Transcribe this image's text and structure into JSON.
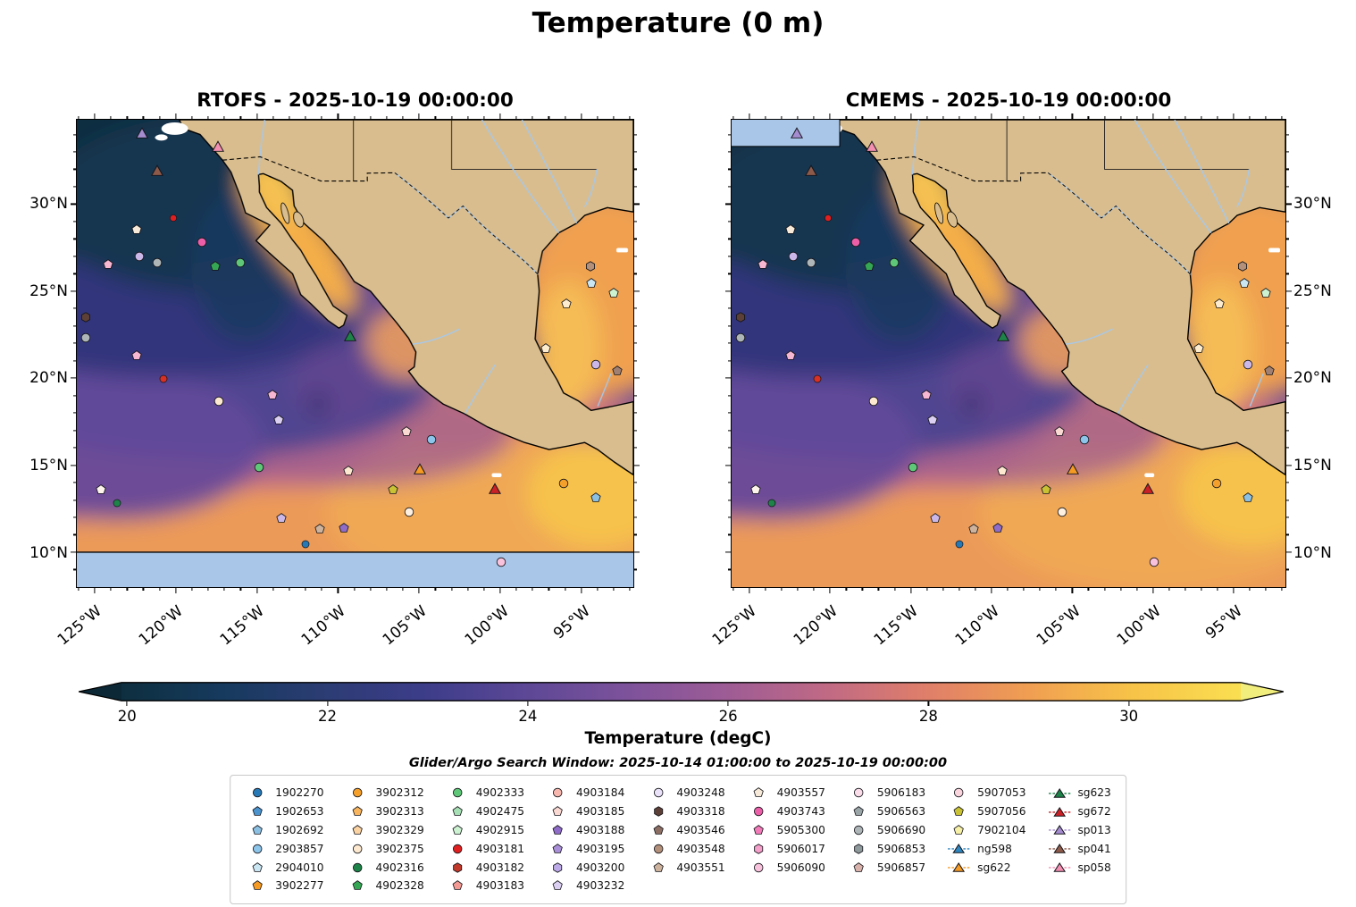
{
  "title": "Temperature (0 m)",
  "chart_data": {
    "type": "heatmap",
    "variable": "Temperature (degC)",
    "depth_label": "0 m",
    "subtitle": "Glider/Argo Search Window: 2025-10-14 01:00:00 to 2025-10-19 00:00:00",
    "panels": [
      {
        "id": "rtofs",
        "title": "RTOFS - 2025-10-19 00:00:00",
        "nodata_region": "south of 10N"
      },
      {
        "id": "cmems",
        "title": "CMEMS - 2025-10-19 00:00:00",
        "nodata_region": "northwest corner strip"
      }
    ],
    "x_axis": {
      "ticks": [
        {
          "label": "125°W",
          "pct": 3.21
        },
        {
          "label": "120°W",
          "pct": 17.78
        },
        {
          "label": "115°W",
          "pct": 32.36
        },
        {
          "label": "110°W",
          "pct": 46.93
        },
        {
          "label": "105°W",
          "pct": 61.51
        },
        {
          "label": "100°W",
          "pct": 76.08
        },
        {
          "label": "95°W",
          "pct": 90.66
        }
      ],
      "minor_pcts": [
        0.29,
        6.12,
        9.04,
        11.95,
        14.87,
        20.7,
        23.61,
        26.53,
        29.44,
        35.27,
        38.19,
        41.1,
        44.02,
        49.85,
        52.76,
        55.68,
        58.59,
        64.42,
        67.34,
        70.25,
        73.17,
        79.0,
        81.91,
        84.83,
        87.74,
        93.57,
        96.49,
        99.4
      ]
    },
    "y_axis": {
      "ticks": [
        {
          "label": "30°N",
          "pct": 18.06
        },
        {
          "label": "25°N",
          "pct": 36.68
        },
        {
          "label": "20°N",
          "pct": 55.29
        },
        {
          "label": "15°N",
          "pct": 73.91
        },
        {
          "label": "10°N",
          "pct": 92.53
        }
      ],
      "minor_pcts": [
        3.17,
        6.89,
        10.61,
        14.34,
        21.78,
        25.51,
        29.23,
        32.95,
        40.4,
        44.12,
        47.85,
        51.57,
        59.02,
        62.74,
        66.46,
        70.19,
        77.63,
        81.36,
        85.08,
        88.8,
        96.25
      ]
    },
    "colorbar": {
      "label": "Temperature (degC)",
      "range_degC": [
        19.9,
        31.1
      ],
      "extend": "both",
      "ticks": [
        {
          "label": "20",
          "pct": 0.5
        },
        {
          "label": "22",
          "pct": 18.4
        },
        {
          "label": "24",
          "pct": 36.3
        },
        {
          "label": "26",
          "pct": 54.2
        },
        {
          "label": "28",
          "pct": 72.1
        },
        {
          "label": "30",
          "pct": 90.0
        }
      ],
      "stops": [
        {
          "pct": 0,
          "color": "#0e2f3f"
        },
        {
          "pct": 9,
          "color": "#163a5e"
        },
        {
          "pct": 18.4,
          "color": "#2c3c74"
        },
        {
          "pct": 27.3,
          "color": "#3d3d8a"
        },
        {
          "pct": 36.3,
          "color": "#5d4896"
        },
        {
          "pct": 45.2,
          "color": "#7d529b"
        },
        {
          "pct": 54.2,
          "color": "#9e5c95"
        },
        {
          "pct": 63.2,
          "color": "#c16a84"
        },
        {
          "pct": 72.1,
          "color": "#e07f69"
        },
        {
          "pct": 81,
          "color": "#f09e52"
        },
        {
          "pct": 90,
          "color": "#f7c248"
        },
        {
          "pct": 100,
          "color": "#fadf51"
        }
      ],
      "under_color": "#0c2836",
      "over_color": "#f2ee7d"
    },
    "colors": {
      "land": "#d9bd8e",
      "nodata_ocean": "#a9c6e8",
      "coastline": "#000000",
      "river": "#a8c8e8"
    },
    "markers": [
      {
        "x": 11.7,
        "y": 2.9,
        "shape": "triangle",
        "color": "#a58cd0",
        "size": 14,
        "name": "sp013"
      },
      {
        "x": 25.3,
        "y": 5.7,
        "shape": "triangle",
        "color": "#f48fb1",
        "size": 14,
        "name": "sp058"
      },
      {
        "x": 14.4,
        "y": 10.9,
        "shape": "triangle",
        "color": "#8d5a4a",
        "size": 14,
        "name": "sp041"
      },
      {
        "x": 10.7,
        "y": 23.6,
        "shape": "pentagon",
        "color": "#f7ead8",
        "name": "argo"
      },
      {
        "x": 17.4,
        "y": 21.0,
        "shape": "circle",
        "color": "#e02020",
        "size": 9,
        "name": "argo"
      },
      {
        "x": 22.4,
        "y": 26.1,
        "shape": "circle",
        "color": "#ec5fa8",
        "name": "argo"
      },
      {
        "x": 11.2,
        "y": 29.3,
        "shape": "circle",
        "color": "#cbb8e8",
        "name": "argo"
      },
      {
        "x": 5.6,
        "y": 30.9,
        "shape": "pentagon",
        "color": "#f7b6d2",
        "name": "argo"
      },
      {
        "x": 14.4,
        "y": 30.5,
        "shape": "circle",
        "color": "#aeb6b8",
        "name": "argo"
      },
      {
        "x": 24.8,
        "y": 31.4,
        "shape": "pentagon",
        "color": "#35a653",
        "name": "argo"
      },
      {
        "x": 29.3,
        "y": 30.5,
        "shape": "circle",
        "color": "#5fc878",
        "name": "argo"
      },
      {
        "x": 92.3,
        "y": 31.4,
        "shape": "hexagon",
        "color": "#b3907a",
        "name": "argo"
      },
      {
        "x": 92.5,
        "y": 35.0,
        "shape": "pentagon",
        "color": "#c9e6f2",
        "name": "argo"
      },
      {
        "x": 96.5,
        "y": 37.1,
        "shape": "pentagon",
        "color": "#ccf2d2",
        "name": "argo"
      },
      {
        "x": 1.6,
        "y": 42.3,
        "shape": "hexagon",
        "color": "#5d4037",
        "name": "argo"
      },
      {
        "x": 88.0,
        "y": 39.4,
        "shape": "pentagon",
        "color": "#fdeccd",
        "name": "argo"
      },
      {
        "x": 1.6,
        "y": 46.7,
        "shape": "circle",
        "color": "#aeb6b8",
        "name": "argo"
      },
      {
        "x": 10.7,
        "y": 50.5,
        "shape": "pentagon",
        "color": "#f7b6d2",
        "name": "argo"
      },
      {
        "x": 49.1,
        "y": 46.3,
        "shape": "triangle",
        "color": "#1d8348",
        "size": 14,
        "name": "sg623"
      },
      {
        "x": 15.5,
        "y": 55.4,
        "shape": "circle",
        "color": "#d93025",
        "size": 10,
        "name": "argo"
      },
      {
        "x": 84.3,
        "y": 49.0,
        "shape": "pentagon",
        "color": "#fdeccd",
        "name": "argo"
      },
      {
        "x": 93.3,
        "y": 52.4,
        "shape": "circle",
        "color": "#cbb8e8",
        "name": "argo"
      },
      {
        "x": 97.1,
        "y": 53.7,
        "shape": "pentagon",
        "color": "#a18072",
        "name": "argo"
      },
      {
        "x": 25.6,
        "y": 60.2,
        "shape": "circle",
        "color": "#fde9cf",
        "name": "argo"
      },
      {
        "x": 35.2,
        "y": 58.9,
        "shape": "pentagon",
        "color": "#f7b6d2",
        "name": "argo"
      },
      {
        "x": 36.3,
        "y": 64.2,
        "shape": "pentagon",
        "color": "#dcd0f2",
        "name": "argo"
      },
      {
        "x": 59.2,
        "y": 66.7,
        "shape": "pentagon",
        "color": "#fbd9d3",
        "name": "argo"
      },
      {
        "x": 63.7,
        "y": 68.4,
        "shape": "circle",
        "color": "#8cc4ea",
        "name": "argo"
      },
      {
        "x": 61.6,
        "y": 74.7,
        "shape": "triangle",
        "color": "#f59a23",
        "size": 14,
        "name": "sg622"
      },
      {
        "x": 32.8,
        "y": 74.3,
        "shape": "circle",
        "color": "#5fc878",
        "name": "argo"
      },
      {
        "x": 48.8,
        "y": 75.2,
        "shape": "pentagon",
        "color": "#fde9cf",
        "name": "argo"
      },
      {
        "x": 4.3,
        "y": 79.2,
        "shape": "pentagon",
        "color": "#fdf5ec",
        "name": "argo"
      },
      {
        "x": 75.2,
        "y": 78.9,
        "shape": "triangle",
        "color": "#cb2026",
        "size": 14,
        "name": "sg672"
      },
      {
        "x": 56.8,
        "y": 79.2,
        "shape": "pentagon",
        "color": "#c9c234",
        "name": "argo"
      },
      {
        "x": 87.5,
        "y": 77.9,
        "shape": "circle",
        "color": "#f6a02c",
        "name": "argo"
      },
      {
        "x": 7.2,
        "y": 82.1,
        "shape": "circle",
        "color": "#1d8348",
        "size": 10,
        "name": "argo"
      },
      {
        "x": 93.3,
        "y": 80.8,
        "shape": "pentagon",
        "color": "#8cc0e2",
        "name": "argo"
      },
      {
        "x": 36.8,
        "y": 85.3,
        "shape": "pentagon",
        "color": "#cbb8e8",
        "name": "argo"
      },
      {
        "x": 59.7,
        "y": 84.0,
        "shape": "circle",
        "color": "#fdf0e0",
        "name": "argo"
      },
      {
        "x": 43.7,
        "y": 87.6,
        "shape": "pentagon",
        "color": "#cdb39d",
        "name": "argo"
      },
      {
        "x": 48.0,
        "y": 87.4,
        "shape": "pentagon",
        "color": "#8e6cc8",
        "name": "argo"
      },
      {
        "x": 41.1,
        "y": 90.9,
        "shape": "circle",
        "color": "#2779b5",
        "size": 10,
        "name": "argo"
      },
      {
        "x": 76.3,
        "y": 94.7,
        "shape": "circle",
        "color": "#f9c2dc",
        "name": "argo"
      }
    ],
    "legend_columns": [
      [
        {
          "label": "1902270",
          "shape": "circle",
          "color": "#2779b5"
        },
        {
          "label": "1902653",
          "shape": "pentagon",
          "color": "#4a93cc"
        },
        {
          "label": "1902692",
          "shape": "pentagon",
          "color": "#8cc0e2"
        },
        {
          "label": "2903857",
          "shape": "circle",
          "color": "#8cc4ea"
        },
        {
          "label": "2904010",
          "shape": "pentagon",
          "color": "#c9e6f2"
        },
        {
          "label": "3902277",
          "shape": "pentagon",
          "color": "#f59a23"
        }
      ],
      [
        {
          "label": "3902312",
          "shape": "circle",
          "color": "#f6a02c"
        },
        {
          "label": "3902313",
          "shape": "pentagon",
          "color": "#f8b55e"
        },
        {
          "label": "3902329",
          "shape": "pentagon",
          "color": "#fbd3a2"
        },
        {
          "label": "3902375",
          "shape": "circle",
          "color": "#fde9cf"
        },
        {
          "label": "4902316",
          "shape": "circle",
          "color": "#1d8348"
        },
        {
          "label": "4902328",
          "shape": "pentagon",
          "color": "#35a653"
        }
      ],
      [
        {
          "label": "4902333",
          "shape": "circle",
          "color": "#5fc878"
        },
        {
          "label": "4902475",
          "shape": "pentagon",
          "color": "#a8e0b5"
        },
        {
          "label": "4902915",
          "shape": "pentagon",
          "color": "#ccf2d2"
        },
        {
          "label": "4903181",
          "shape": "circle",
          "color": "#e02020"
        },
        {
          "label": "4903182",
          "shape": "hexagon",
          "color": "#c0392b"
        },
        {
          "label": "4903183",
          "shape": "pentagon",
          "color": "#f29a93"
        }
      ],
      [
        {
          "label": "4903184",
          "shape": "circle",
          "color": "#f7b6ae"
        },
        {
          "label": "4903185",
          "shape": "pentagon",
          "color": "#fbd9d3"
        },
        {
          "label": "4903188",
          "shape": "pentagon",
          "color": "#8e6cc8"
        },
        {
          "label": "4903195",
          "shape": "pentagon",
          "color": "#a98fd8"
        },
        {
          "label": "4903200",
          "shape": "hexagon",
          "color": "#bca9e8"
        },
        {
          "label": "4903232",
          "shape": "pentagon",
          "color": "#dcd0f2"
        }
      ],
      [
        {
          "label": "4903248",
          "shape": "circle",
          "color": "#eae2f8"
        },
        {
          "label": "4903318",
          "shape": "hexagon",
          "color": "#5d4037"
        },
        {
          "label": "4903546",
          "shape": "pentagon",
          "color": "#8d6e63"
        },
        {
          "label": "4903548",
          "shape": "circle",
          "color": "#b3907a"
        },
        {
          "label": "4903551",
          "shape": "pentagon",
          "color": "#cdb39d"
        }
      ],
      [
        {
          "label": "4903557",
          "shape": "pentagon",
          "color": "#f7ead8"
        },
        {
          "label": "4903743",
          "shape": "circle",
          "color": "#ec5fa8"
        },
        {
          "label": "5905300",
          "shape": "pentagon",
          "color": "#f27ab9"
        },
        {
          "label": "5906017",
          "shape": "hexagon",
          "color": "#f59fcb"
        },
        {
          "label": "5906090",
          "shape": "circle",
          "color": "#f9c2dc"
        }
      ],
      [
        {
          "label": "5906183",
          "shape": "circle",
          "color": "#fadde9"
        },
        {
          "label": "5906563",
          "shape": "pentagon",
          "color": "#9aa5a8"
        },
        {
          "label": "5906690",
          "shape": "circle",
          "color": "#aeb6b8"
        },
        {
          "label": "5906853",
          "shape": "hexagon",
          "color": "#8f9a9d"
        },
        {
          "label": "5906857",
          "shape": "pentagon",
          "color": "#d8b2ab"
        }
      ],
      [
        {
          "label": "5907053",
          "shape": "circle",
          "color": "#fbd5de"
        },
        {
          "label": "5907056",
          "shape": "pentagon",
          "color": "#c9c234"
        },
        {
          "label": "7902104",
          "shape": "pentagon",
          "color": "#f6f0a6"
        },
        {
          "label": "ng598",
          "shape": "glider",
          "color": "#2e86c1"
        },
        {
          "label": "sg622",
          "shape": "glider",
          "color": "#f59a23"
        }
      ],
      [
        {
          "label": "sg623",
          "shape": "glider",
          "color": "#1d8348"
        },
        {
          "label": "sg672",
          "shape": "glider",
          "color": "#cb2026"
        },
        {
          "label": "sp013",
          "shape": "glider",
          "color": "#a58cd0"
        },
        {
          "label": "sp041",
          "shape": "glider",
          "color": "#8d5a4a"
        },
        {
          "label": "sp058",
          "shape": "glider",
          "color": "#f48fb1"
        }
      ]
    ]
  }
}
